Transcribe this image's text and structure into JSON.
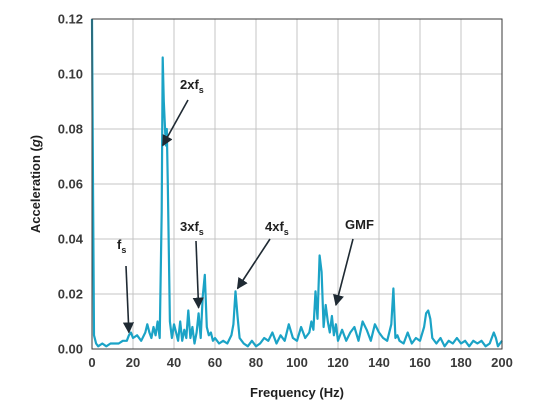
{
  "chart_data": {
    "type": "line",
    "xlabel": "Frequency (Hz)",
    "ylabel_prefix": "Acceleration (",
    "ylabel_unit": "g",
    "ylabel_suffix": ")",
    "xlim": [
      0,
      200
    ],
    "ylim": [
      0,
      0.12
    ],
    "xticks": [
      0,
      20,
      40,
      60,
      80,
      100,
      120,
      140,
      160,
      180,
      200
    ],
    "yticks": [
      0.0,
      0.02,
      0.04,
      0.06,
      0.08,
      0.1,
      0.12
    ],
    "ytick_labels": [
      "0.00",
      "0.02",
      "0.04",
      "0.06",
      "0.08",
      "0.10",
      "0.12"
    ],
    "grid": true,
    "line_color": "#1ba3c6",
    "series": [
      {
        "x": [
          0,
          0.5,
          1,
          2,
          3,
          5,
          7,
          9,
          11,
          13,
          15,
          17,
          18,
          19,
          20,
          22,
          24,
          26,
          27,
          28,
          29,
          30,
          31,
          32,
          33,
          34,
          34.5,
          35,
          36,
          36.5,
          37,
          38,
          39,
          40,
          41,
          42,
          43,
          44,
          45,
          46,
          47,
          48,
          49,
          50,
          51,
          52,
          53,
          54,
          55,
          56,
          57,
          58,
          59,
          60,
          62,
          64,
          66,
          68,
          69,
          70,
          71,
          72,
          73,
          74,
          76,
          78,
          80,
          82,
          84,
          86,
          88,
          90,
          92,
          94,
          96,
          98,
          100,
          102,
          104,
          106,
          107,
          108,
          109,
          110,
          111,
          112,
          113,
          114,
          115,
          116,
          117,
          118,
          119,
          120,
          122,
          124,
          126,
          128,
          130,
          132,
          134,
          136,
          138,
          140,
          142,
          144,
          146,
          147,
          148,
          149,
          150,
          152,
          154,
          156,
          158,
          160,
          162,
          163,
          164,
          165,
          166,
          168,
          170,
          172,
          174,
          176,
          178,
          180,
          182,
          184,
          186,
          188,
          190,
          192,
          194,
          196,
          197,
          198,
          199,
          200
        ],
        "y": [
          0.12,
          0.06,
          0.005,
          0.002,
          0.001,
          0.002,
          0.001,
          0.002,
          0.002,
          0.002,
          0.003,
          0.003,
          0.005,
          0.006,
          0.004,
          0.005,
          0.003,
          0.006,
          0.009,
          0.006,
          0.004,
          0.008,
          0.005,
          0.01,
          0.004,
          0.05,
          0.106,
          0.09,
          0.074,
          0.08,
          0.06,
          0.01,
          0.004,
          0.009,
          0.006,
          0.003,
          0.01,
          0.003,
          0.007,
          0.004,
          0.014,
          0.004,
          0.008,
          0.002,
          0.006,
          0.013,
          0.004,
          0.019,
          0.027,
          0.008,
          0.005,
          0.006,
          0.003,
          0.004,
          0.002,
          0.003,
          0.002,
          0.005,
          0.009,
          0.021,
          0.012,
          0.004,
          0.003,
          0.002,
          0.001,
          0.003,
          0.001,
          0.002,
          0.004,
          0.003,
          0.006,
          0.002,
          0.005,
          0.003,
          0.009,
          0.004,
          0.003,
          0.008,
          0.004,
          0.006,
          0.01,
          0.007,
          0.021,
          0.011,
          0.034,
          0.028,
          0.008,
          0.016,
          0.01,
          0.006,
          0.012,
          0.005,
          0.009,
          0.003,
          0.007,
          0.003,
          0.006,
          0.008,
          0.003,
          0.01,
          0.007,
          0.003,
          0.009,
          0.006,
          0.004,
          0.003,
          0.009,
          0.022,
          0.004,
          0.005,
          0.003,
          0.002,
          0.006,
          0.002,
          0.004,
          0.003,
          0.008,
          0.013,
          0.014,
          0.011,
          0.004,
          0.002,
          0.004,
          0.001,
          0.003,
          0.002,
          0.004,
          0.002,
          0.003,
          0.001,
          0.003,
          0.002,
          0.003,
          0.001,
          0.002,
          0.006,
          0.004,
          0.001,
          0.002,
          0.003
        ]
      }
    ],
    "annotations": [
      {
        "main": "2xf",
        "sub": "s",
        "x": 34.5,
        "y": 0.074
      },
      {
        "main": "3xf",
        "sub": "s",
        "x": 52,
        "y": 0.015
      },
      {
        "main": "4xf",
        "sub": "s",
        "x": 71,
        "y": 0.022
      },
      {
        "main": "GMF",
        "sub": "",
        "x": 119,
        "y": 0.016
      },
      {
        "main": "f",
        "sub": "s",
        "x": 18,
        "y": 0.006
      }
    ]
  }
}
